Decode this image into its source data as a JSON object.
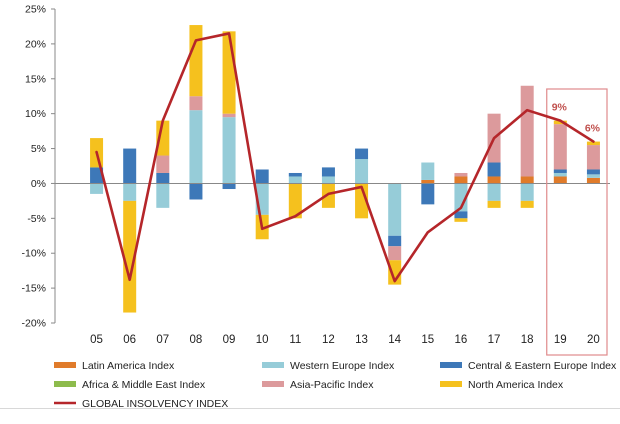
{
  "chart_data": {
    "type": "bar",
    "stacked": true,
    "categories": [
      "05",
      "06",
      "07",
      "08",
      "09",
      "10",
      "11",
      "12",
      "13",
      "14",
      "15",
      "16",
      "17",
      "18",
      "19",
      "20"
    ],
    "ylim": [
      -20,
      25
    ],
    "yticks": [
      -20,
      -15,
      -10,
      -5,
      0,
      5,
      10,
      15,
      20,
      25
    ],
    "ytick_labels": [
      "-20%",
      "-15%",
      "-10%",
      "-5%",
      "0%",
      "5%",
      "10%",
      "15%",
      "20%",
      "25%"
    ],
    "grid": false,
    "legend_position": "bottom",
    "series": [
      {
        "name": "Latin America Index",
        "color": "#e07b2a",
        "values": [
          0,
          0,
          0,
          0,
          0,
          0,
          0,
          0,
          0,
          0,
          0.5,
          1.0,
          1.0,
          1.0,
          1.0,
          0.8
        ]
      },
      {
        "name": "Western Europe Index",
        "color": "#96ccd8",
        "values": [
          -1.5,
          -2.5,
          -3.5,
          10.5,
          9.5,
          -4.5,
          1.0,
          1.0,
          3.5,
          -7.5,
          2.5,
          -4.0,
          -2.5,
          -2.5,
          0.5,
          0.5
        ]
      },
      {
        "name": "Central & Eastern Europe Index",
        "color": "#3d78b8",
        "values": [
          2.3,
          5.0,
          1.5,
          -2.3,
          -0.8,
          2.0,
          0.5,
          1.3,
          1.5,
          -1.5,
          -3.0,
          -1.0,
          2.0,
          0,
          0.5,
          0.7
        ]
      },
      {
        "name": "Africa & Middle East Index",
        "color": "#8dbb4c",
        "values": [
          0,
          0,
          0,
          0,
          0,
          0,
          0,
          0,
          0,
          0,
          0,
          0,
          0,
          0,
          0,
          0
        ]
      },
      {
        "name": "Asia-Pacific Index",
        "color": "#dc9a9c",
        "values": [
          0,
          0,
          2.5,
          2.0,
          0.5,
          0,
          0,
          0,
          0,
          -2.0,
          0,
          0.5,
          7.0,
          13.0,
          6.5,
          3.5
        ]
      },
      {
        "name": "North America Index",
        "color": "#f5c11e",
        "values": [
          4.2,
          -16.0,
          5.0,
          10.2,
          11.8,
          -3.5,
          -5.0,
          -3.5,
          -5.0,
          -3.5,
          0,
          -0.5,
          -1.0,
          -1.0,
          0.5,
          0.5
        ]
      }
    ],
    "line": {
      "name": "GLOBAL INSOLVENCY INDEX",
      "color": "#b5262a",
      "values": [
        4.5,
        -13.8,
        9.0,
        20.5,
        21.5,
        -6.5,
        -4.7,
        -1.5,
        -0.5,
        -14.0,
        -7.0,
        -3.5,
        6.5,
        10.5,
        9.0,
        6.0
      ]
    },
    "forecast_box": {
      "from": "19",
      "to": "20"
    },
    "annotations": [
      {
        "category": "19",
        "text": "9%"
      },
      {
        "category": "20",
        "text": "6%"
      }
    ]
  }
}
